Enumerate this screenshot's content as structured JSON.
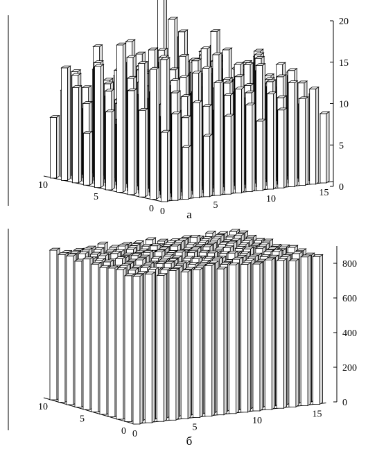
{
  "chart_data": [
    {
      "type": "bar3d",
      "caption": "а",
      "z_ticks": [
        "0",
        "5",
        "10",
        "15",
        "20"
      ],
      "x_ticks": [
        "0",
        "5",
        "10",
        "15"
      ],
      "y_ticks": [
        "0",
        "5",
        "10"
      ],
      "zlim": [
        0,
        20
      ],
      "grid_size": [
        16,
        11
      ],
      "values": [
        [
          8,
          15,
          10,
          12,
          17,
          9,
          14,
          6,
          11,
          13,
          7
        ],
        [
          10,
          16,
          12,
          15,
          13,
          8,
          11,
          14,
          9,
          12,
          10
        ],
        [
          6,
          12,
          9,
          14,
          11,
          15,
          7,
          10,
          13,
          8,
          12
        ],
        [
          11,
          9,
          13,
          10,
          16,
          12,
          14,
          9,
          11,
          15,
          10
        ],
        [
          7,
          14,
          11,
          12,
          15,
          10,
          13,
          16,
          9,
          11,
          12
        ],
        [
          13,
          10,
          15,
          9,
          12,
          14,
          11,
          13,
          10,
          12,
          8
        ],
        [
          9,
          12,
          14,
          11,
          10,
          13,
          15,
          12,
          14,
          9,
          11
        ],
        [
          12,
          11,
          9,
          13,
          14,
          12,
          10,
          21,
          11,
          13,
          10
        ],
        [
          10,
          13,
          12,
          15,
          11,
          10,
          14,
          18,
          12,
          11,
          9
        ],
        [
          8,
          11,
          14,
          12,
          13,
          15,
          12,
          10,
          13,
          14,
          11
        ],
        [
          11,
          14,
          10,
          13,
          15,
          12,
          11,
          13,
          16,
          10,
          12
        ],
        [
          9,
          12,
          13,
          11,
          10,
          14,
          13,
          12,
          11,
          15,
          10
        ],
        [
          12,
          10,
          11,
          14,
          13,
          11,
          12,
          16,
          13,
          12,
          11
        ],
        [
          10,
          13,
          12,
          11,
          14,
          12,
          10,
          11,
          14,
          13,
          9
        ],
        [
          11,
          9,
          12,
          13,
          11,
          14,
          12,
          10,
          12,
          11,
          10
        ],
        [
          8,
          10,
          11,
          12,
          10,
          11,
          13,
          12,
          11,
          10,
          9
        ]
      ]
    },
    {
      "type": "bar3d",
      "caption": "б",
      "z_ticks": [
        "0",
        "200",
        "400",
        "600",
        "800"
      ],
      "x_ticks": [
        "0",
        "5",
        "10",
        "15"
      ],
      "y_ticks": [
        "0",
        "5",
        "10"
      ],
      "zlim": [
        0,
        900
      ],
      "grid_size": [
        16,
        11
      ],
      "values": [
        [
          800,
          790,
          810,
          805,
          795,
          800,
          815,
          790,
          805,
          800,
          810
        ],
        [
          805,
          795,
          800,
          810,
          790,
          805,
          800,
          795,
          810,
          800,
          790
        ],
        [
          790,
          810,
          805,
          795,
          800,
          815,
          790,
          805,
          800,
          810,
          795
        ],
        [
          810,
          800,
          790,
          805,
          815,
          795,
          800,
          810,
          790,
          805,
          800
        ],
        [
          795,
          805,
          815,
          800,
          790,
          810,
          805,
          795,
          800,
          790,
          815
        ],
        [
          800,
          790,
          805,
          810,
          800,
          795,
          815,
          800,
          805,
          810,
          790
        ],
        [
          815,
          800,
          795,
          790,
          805,
          800,
          810,
          795,
          790,
          805,
          800
        ],
        [
          790,
          810,
          800,
          805,
          795,
          815,
          800,
          805,
          810,
          795,
          800
        ],
        [
          805,
          795,
          810,
          800,
          790,
          805,
          795,
          815,
          800,
          790,
          810
        ],
        [
          800,
          815,
          790,
          795,
          810,
          800,
          805,
          790,
          815,
          800,
          795
        ],
        [
          795,
          800,
          805,
          815,
          800,
          790,
          810,
          800,
          795,
          805,
          790
        ],
        [
          810,
          790,
          800,
          805,
          795,
          810,
          790,
          805,
          800,
          815,
          800
        ],
        [
          800,
          805,
          795,
          790,
          810,
          800,
          815,
          795,
          805,
          800,
          790
        ],
        [
          790,
          800,
          815,
          800,
          805,
          795,
          800,
          810,
          790,
          805,
          810
        ],
        [
          805,
          810,
          790,
          800,
          795,
          805,
          790,
          800,
          815,
          795,
          800
        ],
        [
          800,
          795,
          805,
          810,
          800,
          790,
          805,
          795,
          800,
          810,
          805
        ]
      ]
    }
  ]
}
